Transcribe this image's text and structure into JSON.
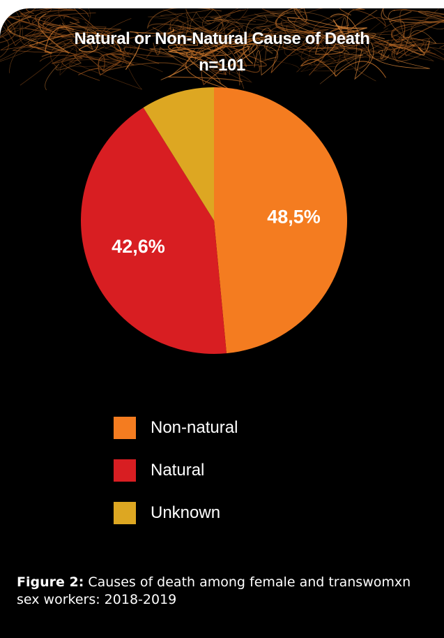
{
  "chart_data": {
    "type": "pie",
    "title": "Natural or Non-Natural Cause of Death",
    "subtitle": "n=101",
    "categories": [
      "Non-natural",
      "Natural",
      "Unknown"
    ],
    "values": [
      48.5,
      42.6,
      8.9
    ],
    "data_labels": [
      "48,5%",
      "42,6%",
      ""
    ],
    "colors": [
      "#F47C20",
      "#D81E22",
      "#DDA722"
    ],
    "legend_placement": "bottom",
    "start_angle": "top, clockwise"
  },
  "caption": {
    "label": "Figure 2:",
    "text": " Causes of death among female and transwomxn sex workers: 2018-2019"
  },
  "background_color": "#000000"
}
